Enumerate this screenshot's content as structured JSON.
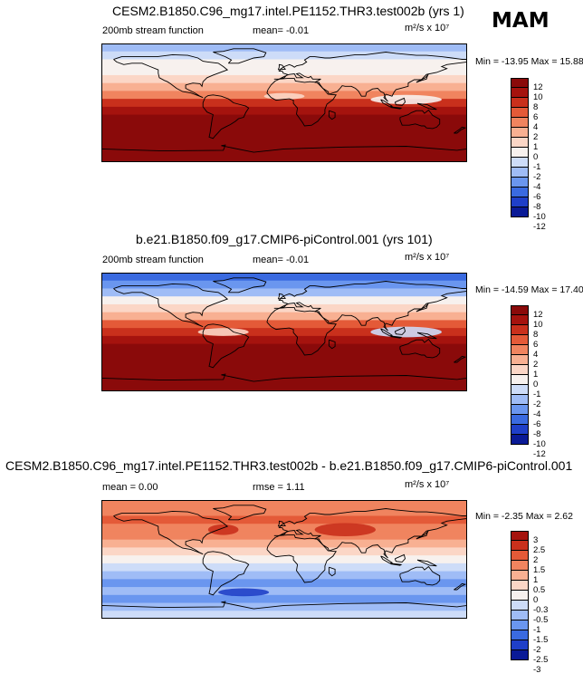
{
  "season": "MAM",
  "palette": {
    "abs": [
      "#0a1a96",
      "#1f3fc8",
      "#3a6ae0",
      "#6a96ef",
      "#9fbcf6",
      "#cddcf8",
      "#f7f1ee",
      "#fbd6c6",
      "#f8b092",
      "#f0845f",
      "#e45a38",
      "#c9301c",
      "#a5130e",
      "#8a0a0a"
    ],
    "diff": [
      "#0a1a96",
      "#1f3fc8",
      "#3a6ae0",
      "#6a96ef",
      "#9fbcf6",
      "#cddcf8",
      "#f7f1ee",
      "#fbd6c6",
      "#f8b092",
      "#f0845f",
      "#e45a38",
      "#c9301c",
      "#a5130e"
    ]
  },
  "chart_data": [
    {
      "type": "heatmap",
      "title": "CESM2.B1850.C96_mg17.intel.PE1152.THR3.test002b (yrs 1)",
      "left_label": "200mb stream function",
      "center_label": "mean=  -0.01",
      "units_label": "m²/s x 10⁷",
      "minmax": "Min = -13.95 Max =  15.88",
      "colorbar_levels": [
        "12",
        "10",
        "8",
        "6",
        "4",
        "2",
        "1",
        "0",
        "-1",
        "-2",
        "-4",
        "-6",
        "-8",
        "-10",
        "-12"
      ],
      "field": "abs",
      "tint": [
        4,
        5,
        6,
        6,
        7,
        8,
        9,
        11,
        12,
        13,
        14,
        15,
        16,
        17,
        17
      ],
      "anoms": [
        {
          "lon": 120,
          "lat": 5,
          "rx": 35,
          "ry": 7,
          "level": 6
        },
        {
          "lon": 0,
          "lat": 10,
          "rx": 20,
          "ry": 5,
          "level": 7
        }
      ]
    },
    {
      "type": "heatmap",
      "title": "b.e21.B1850.f09_g17.CMIP6-piControl.001 (yrs 101)",
      "left_label": "200mb stream function",
      "center_label": "mean=  -0.01",
      "units_label": "m²/s x 10⁷",
      "minmax": "Min = -14.59 Max =  17.40",
      "colorbar_levels": [
        "12",
        "10",
        "8",
        "6",
        "4",
        "2",
        "1",
        "0",
        "-1",
        "-2",
        "-4",
        "-6",
        "-8",
        "-10",
        "-12"
      ],
      "field": "abs",
      "tint": [
        2,
        3,
        4,
        6,
        7,
        8,
        10,
        11,
        12,
        13,
        14,
        15,
        16,
        17,
        17
      ],
      "anoms": [
        {
          "lon": 120,
          "lat": 0,
          "rx": 35,
          "ry": 8,
          "level": 5
        },
        {
          "lon": -60,
          "lat": 0,
          "rx": 25,
          "ry": 6,
          "level": 7
        }
      ]
    },
    {
      "type": "heatmap",
      "title": "CESM2.B1850.C96_mg17.intel.PE1152.THR3.test002b - b.e21.B1850.f09_g17.CMIP6-piControl.001",
      "left_label": "mean =  0.00",
      "center_label": "rmse =  1.11",
      "units_label": "m²/s x 10⁷",
      "minmax": "Min = -2.35 Max =  2.62",
      "colorbar_levels": [
        "3",
        "2.5",
        "2",
        "1.5",
        "1",
        "0.5",
        "0",
        "-0.3",
        "-0.5",
        "-1",
        "-1.5",
        "-2",
        "-2.5",
        "-3"
      ],
      "field": "diff",
      "tint": [
        9,
        9,
        10,
        9,
        9,
        8,
        7,
        6,
        5,
        4,
        3,
        4,
        3,
        4,
        5
      ],
      "anoms": [
        {
          "lon": 60,
          "lat": 45,
          "rx": 30,
          "ry": 10,
          "level": 11
        },
        {
          "lon": -60,
          "lat": 45,
          "rx": 15,
          "ry": 8,
          "level": 11
        },
        {
          "lon": -40,
          "lat": -50,
          "rx": 25,
          "ry": 6,
          "level": 1
        }
      ]
    }
  ]
}
